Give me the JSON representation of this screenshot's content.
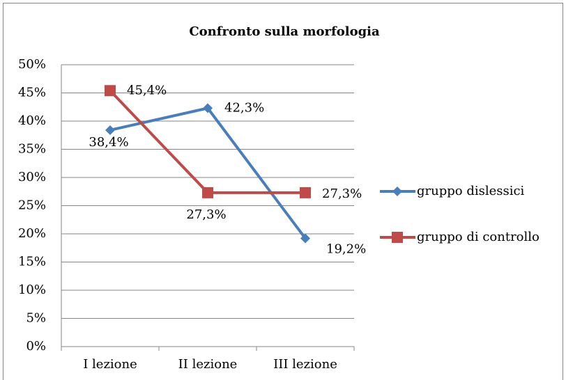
{
  "chart_data": {
    "type": "line",
    "title": "Confronto sulla morfologia",
    "categories": [
      "I lezione",
      "II lezione",
      "III lezione"
    ],
    "series": [
      {
        "name": "gruppo dislessici",
        "color": "#4a7ebb",
        "marker": "diamond",
        "values": [
          38.4,
          42.3,
          19.2
        ],
        "value_labels": [
          "38,4%",
          "42,3%",
          "19,2%"
        ]
      },
      {
        "name": "gruppo di controllo",
        "color": "#be4b48",
        "marker": "square",
        "values": [
          45.4,
          27.3,
          27.3
        ],
        "value_labels": [
          "45,4%",
          "27,3%",
          "27,3%"
        ]
      }
    ],
    "ylim": [
      0,
      50
    ],
    "yticks": [
      {
        "value": 0,
        "label": "0%"
      },
      {
        "value": 5,
        "label": "5%"
      },
      {
        "value": 10,
        "label": "10%"
      },
      {
        "value": 15,
        "label": "15%"
      },
      {
        "value": 20,
        "label": "20%"
      },
      {
        "value": 25,
        "label": "25%"
      },
      {
        "value": 30,
        "label": "30%"
      },
      {
        "value": 35,
        "label": "35%"
      },
      {
        "value": 40,
        "label": "40%"
      },
      {
        "value": 45,
        "label": "45%"
      },
      {
        "value": 50,
        "label": "50%"
      }
    ],
    "grid": true,
    "legend": "right"
  }
}
